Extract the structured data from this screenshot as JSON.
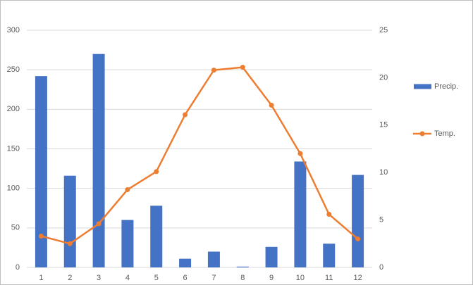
{
  "chart_data": {
    "type": "bar",
    "categories": [
      "1",
      "2",
      "3",
      "4",
      "5",
      "6",
      "7",
      "8",
      "9",
      "10",
      "11",
      "12"
    ],
    "series": [
      {
        "name": "Precip.",
        "type": "bar",
        "color": "#4472c4",
        "values": [
          242,
          116,
          270,
          60,
          78,
          11,
          20,
          1,
          26,
          134,
          30,
          117
        ]
      },
      {
        "name": "Temp.",
        "type": "line",
        "axis": "y2",
        "color": "#ed7d31",
        "values": [
          3.3,
          2.5,
          4.6,
          8.2,
          10.1,
          16.1,
          20.8,
          21.1,
          17.1,
          12.0,
          5.6,
          3.0
        ]
      }
    ],
    "ylim": [
      0,
      300
    ],
    "yticks": [
      0,
      50,
      100,
      150,
      200,
      250,
      300
    ],
    "y2lim": [
      0,
      25
    ],
    "y2ticks": [
      0,
      5,
      10,
      15,
      20,
      25
    ],
    "grid": true,
    "legend": "right"
  }
}
